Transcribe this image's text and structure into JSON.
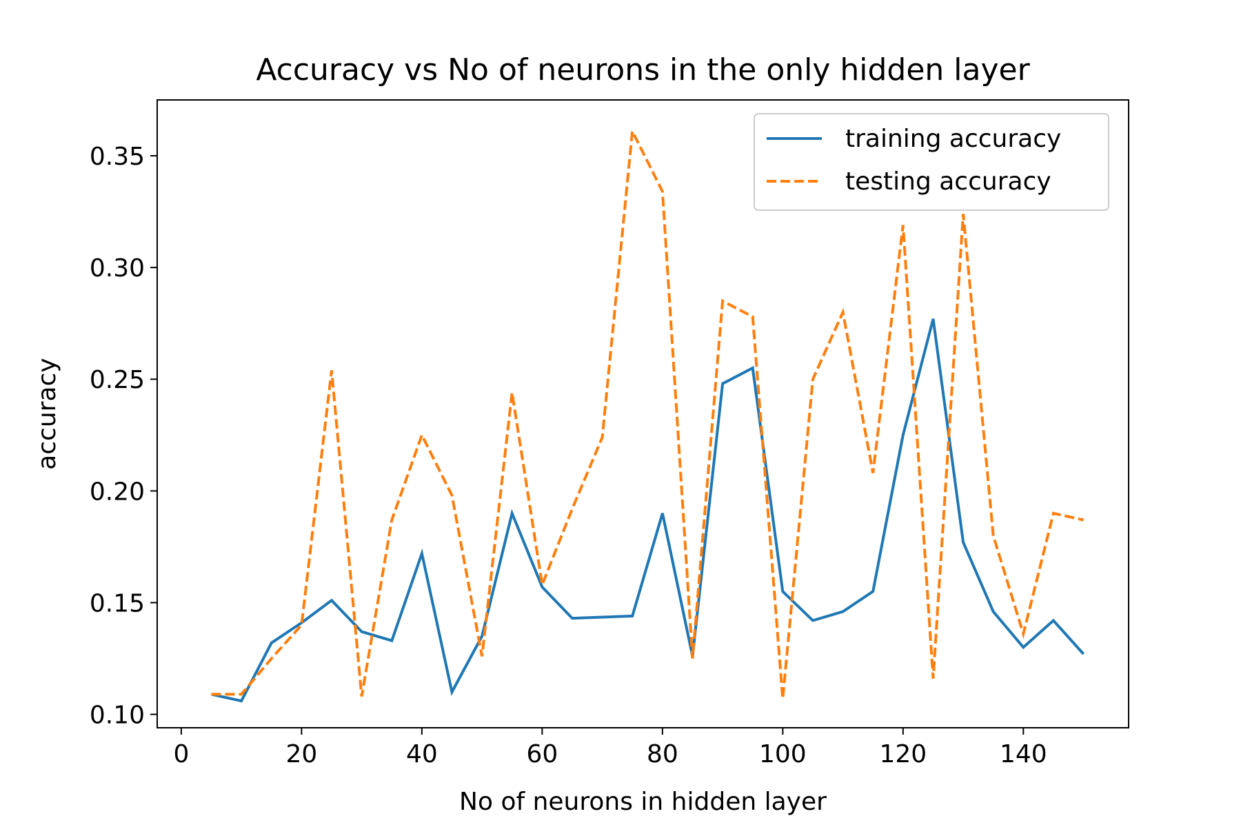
{
  "chart_data": {
    "type": "line",
    "title": "Accuracy vs No of neurons in the only hidden layer",
    "xlabel": "No of neurons in hidden layer",
    "ylabel": "accuracy",
    "xlim": [
      -4,
      157.5
    ],
    "ylim": [
      0.094,
      0.375
    ],
    "xticks": [
      0,
      20,
      40,
      60,
      80,
      100,
      120,
      140
    ],
    "xtick_labels": [
      "0",
      "20",
      "40",
      "60",
      "80",
      "100",
      "120",
      "140"
    ],
    "yticks": [
      0.1,
      0.15,
      0.2,
      0.25,
      0.3,
      0.35
    ],
    "ytick_labels": [
      "0.10",
      "0.15",
      "0.20",
      "0.25",
      "0.30",
      "0.35"
    ],
    "grid": false,
    "legend_position": "top-right",
    "x": [
      5,
      10,
      15,
      20,
      25,
      30,
      35,
      40,
      45,
      50,
      55,
      60,
      65,
      70,
      75,
      80,
      85,
      90,
      95,
      100,
      105,
      110,
      115,
      120,
      125,
      130,
      135,
      140,
      145,
      150
    ],
    "series": [
      {
        "name": "training accuracy",
        "color": "#1f77b4",
        "style": "solid",
        "values": [
          0.109,
          0.106,
          0.132,
          0.141,
          0.151,
          0.137,
          0.133,
          0.172,
          0.11,
          0.135,
          0.19,
          0.157,
          0.143,
          0.1435,
          0.144,
          0.19,
          0.126,
          0.248,
          0.255,
          0.155,
          0.142,
          0.146,
          0.155,
          0.225,
          0.277,
          0.177,
          0.146,
          0.13,
          0.142,
          0.127
        ]
      },
      {
        "name": "testing accuracy",
        "color": "#ff7f0e",
        "style": "dashed",
        "values": [
          0.109,
          0.109,
          0.125,
          0.14,
          0.254,
          0.108,
          0.187,
          0.225,
          0.198,
          0.126,
          0.244,
          0.158,
          0.192,
          0.224,
          0.361,
          0.334,
          0.125,
          0.285,
          0.278,
          0.107,
          0.25,
          0.28,
          0.208,
          0.319,
          0.116,
          0.324,
          0.18,
          0.136,
          0.19,
          0.187
        ]
      }
    ]
  }
}
